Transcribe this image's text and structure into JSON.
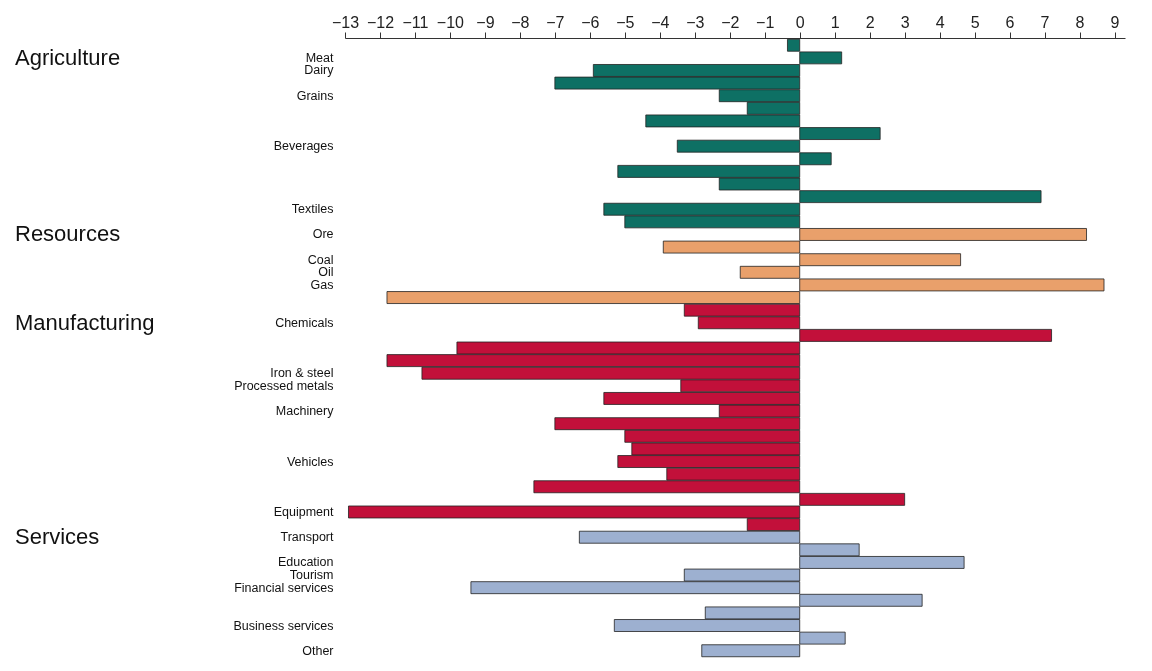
{
  "chart_data": {
    "type": "bar",
    "orientation": "horizontal",
    "grid": false,
    "categories": [
      null,
      "Meat",
      "Dairy",
      null,
      "Grains",
      null,
      null,
      null,
      "Beverages",
      null,
      null,
      null,
      null,
      "Textiles",
      null,
      "Ore",
      null,
      "Coal",
      "Oil",
      "Gas",
      null,
      null,
      "Chemicals",
      null,
      null,
      null,
      "Iron & steel",
      "Processed metals",
      null,
      "Machinery",
      null,
      null,
      null,
      "Vehicles",
      null,
      null,
      null,
      "Equipment",
      null,
      "Transport",
      null,
      "Education",
      "Tourism",
      "Financial services",
      null,
      null,
      "Business services",
      null,
      "Other"
    ],
    "xlim": [
      -13,
      9.3
    ],
    "xticks": [
      -13,
      -12,
      -11,
      -10,
      -9,
      -8,
      -7,
      -6,
      -5,
      -4,
      -3,
      -2,
      -1,
      0,
      1,
      2,
      3,
      4,
      5,
      6,
      7,
      8,
      9
    ],
    "annotations": [
      "Agriculture",
      "Resources",
      "Manufacturing",
      "Services"
    ],
    "series": [
      {
        "color": "#0e7064",
        "values": [
          -0.35,
          1.2,
          -5.9,
          -7.0,
          -2.3,
          -1.5,
          -4.4,
          2.3,
          -3.5,
          0.9,
          -5.2,
          -2.3,
          6.9,
          -5.6,
          -5.0,
          null,
          null,
          null,
          null,
          null,
          null,
          null,
          null,
          null,
          null,
          null,
          null,
          null,
          null,
          null,
          null,
          null,
          null,
          null,
          null,
          null,
          null,
          null,
          null,
          null,
          null,
          null,
          null,
          null,
          null,
          null,
          null,
          null,
          null
        ]
      },
      {
        "color": "#e9a06b",
        "values": [
          null,
          null,
          null,
          null,
          null,
          null,
          null,
          null,
          null,
          null,
          null,
          null,
          null,
          null,
          null,
          8.2,
          -3.9,
          4.6,
          -1.7,
          8.7,
          -11.8,
          null,
          null,
          null,
          null,
          null,
          null,
          null,
          null,
          null,
          null,
          null,
          null,
          null,
          null,
          null,
          null,
          null,
          null,
          null,
          null,
          null,
          null,
          null,
          null,
          null,
          null,
          null,
          null
        ]
      },
      {
        "color": "#c2103a",
        "values": [
          null,
          null,
          null,
          null,
          null,
          null,
          null,
          null,
          null,
          null,
          null,
          null,
          null,
          null,
          null,
          null,
          null,
          null,
          null,
          null,
          null,
          -3.3,
          -2.9,
          7.2,
          -9.8,
          -11.8,
          -10.8,
          -3.4,
          -5.6,
          -2.3,
          -7.0,
          -5.0,
          -4.8,
          -5.2,
          -3.8,
          -7.6,
          3.0,
          -12.9,
          -1.5,
          null,
          null,
          null,
          null,
          null,
          null,
          null,
          null,
          null,
          null
        ]
      },
      {
        "color": "#9db0d0",
        "values": [
          null,
          null,
          null,
          null,
          null,
          null,
          null,
          null,
          null,
          null,
          null,
          null,
          null,
          null,
          null,
          null,
          null,
          null,
          null,
          null,
          null,
          null,
          null,
          null,
          null,
          null,
          null,
          null,
          null,
          null,
          null,
          null,
          null,
          null,
          null,
          null,
          null,
          null,
          null,
          -6.3,
          1.7,
          4.7,
          -3.3,
          -9.4,
          3.5,
          -2.7,
          -5.3,
          1.3,
          -2.8
        ]
      }
    ]
  }
}
